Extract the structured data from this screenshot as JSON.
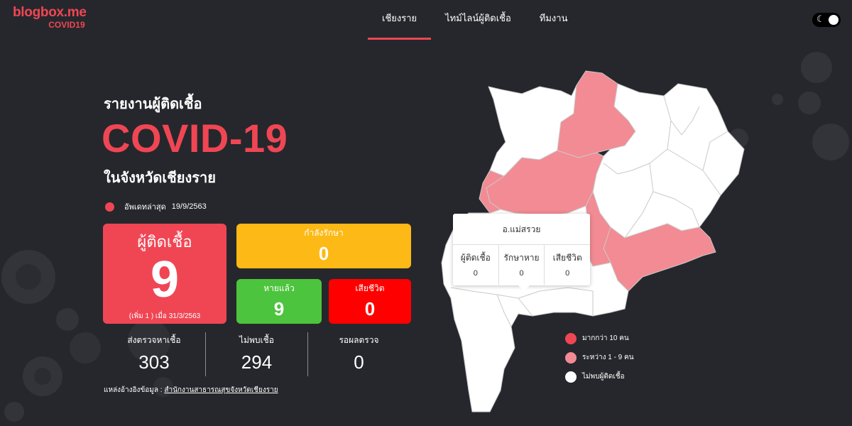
{
  "header": {
    "logo_main": "blogbox.me",
    "logo_sub": "COVID19",
    "nav": [
      {
        "label": "เชียงราย",
        "active": true
      },
      {
        "label": "ไทม์ไลน์ผู้ติดเชื้อ",
        "active": false
      },
      {
        "label": "ทีมงาน",
        "active": false
      }
    ],
    "theme_toggle_icon": "moon-icon"
  },
  "hero": {
    "report_label": "รายงานผู้ติดเชื้อ",
    "title": "COVID-19",
    "province": "ในจังหวัดเชียงราย",
    "update_label": "อัพเดทล่าสุด",
    "update_date": "19/9/2563"
  },
  "cards": {
    "infected": {
      "label": "ผู้ติดเชื้อ",
      "value": "9",
      "note": "(เพิ่ม 1 ) เมื่อ 31/3/2563"
    },
    "treating": {
      "label": "กำลังรักษา",
      "value": "0"
    },
    "recovered": {
      "label": "หายแล้ว",
      "value": "9"
    },
    "dead": {
      "label": "เสียชีวิต",
      "value": "0"
    }
  },
  "stats": [
    {
      "label": "ส่งตรวจหาเชื้อ",
      "value": "303"
    },
    {
      "label": "ไม่พบเชื้อ",
      "value": "294"
    },
    {
      "label": "รอผลตรวจ",
      "value": "0"
    }
  ],
  "source": {
    "label": "แหล่งอ้างอิงข้อมูล :",
    "link": "สำนักงานสาธารณสุขจังหวัดเชียงราย"
  },
  "tooltip": {
    "district": "อ.แม่สรวย",
    "columns": [
      {
        "label": "ผู้ติดเชื้อ",
        "value": "0"
      },
      {
        "label": "รักษาหาย",
        "value": "0"
      },
      {
        "label": "เสียชีวิต",
        "value": "0"
      }
    ]
  },
  "legend": [
    {
      "label": "มากกว่า 10 คน",
      "color": "#f04654"
    },
    {
      "label": "ระหว่าง 1 - 9 คน",
      "color": "#f28b93"
    },
    {
      "label": "ไม่พบผู้ติดเชื้อ",
      "color": "#ffffff"
    }
  ],
  "colors": {
    "accent": "#f04654",
    "background": "#26272c",
    "treating": "#fdb915",
    "recovered": "#4dc43d",
    "dead": "#ff0000",
    "district_pink": "#f28b93",
    "district_white": "#ffffff"
  }
}
